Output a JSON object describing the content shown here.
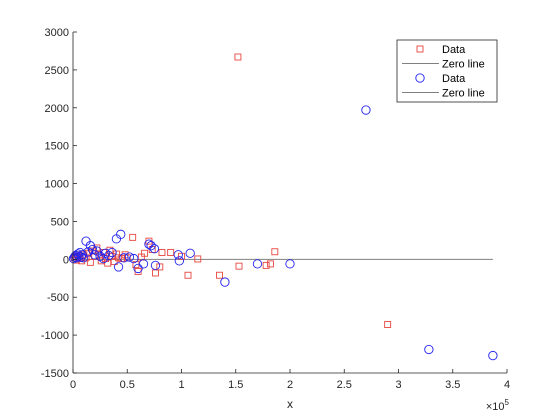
{
  "chart_data": {
    "type": "scatter",
    "xlabel": "x",
    "ylabel": "",
    "x_exponent_base": "×10",
    "x_exponent_power": "5",
    "xlim": [
      0,
      400000
    ],
    "ylim": [
      -1500,
      3000
    ],
    "x_ticks": [
      0,
      50000,
      100000,
      150000,
      200000,
      250000,
      300000,
      350000,
      400000
    ],
    "x_tick_labels": [
      "0",
      "0.5",
      "1",
      "1.5",
      "2",
      "2.5",
      "3",
      "3.5",
      "4"
    ],
    "y_ticks": [
      -1500,
      -1000,
      -500,
      0,
      500,
      1000,
      1500,
      2000,
      2500,
      3000
    ],
    "y_tick_labels": [
      "-1500",
      "-1000",
      "-500",
      "0",
      "500",
      "1000",
      "1500",
      "2000",
      "2500",
      "3000"
    ],
    "grid": false,
    "legend_position": "top-right",
    "legend": [
      {
        "label": "Data",
        "kind": "square",
        "color": "#e8463f"
      },
      {
        "label": "Zero line",
        "kind": "line",
        "color": "#808080"
      },
      {
        "label": "Data",
        "kind": "circle",
        "color": "#2222ee"
      },
      {
        "label": "Zero line",
        "kind": "line",
        "color": "#808080"
      }
    ],
    "series": [
      {
        "marker": "square",
        "color": "#e8463f",
        "points": [
          [
            1000,
            20
          ],
          [
            2000,
            40
          ],
          [
            3000,
            -10
          ],
          [
            4000,
            60
          ],
          [
            5000,
            30
          ],
          [
            6000,
            10
          ],
          [
            8000,
            -20
          ],
          [
            10000,
            60
          ],
          [
            12000,
            20
          ],
          [
            14000,
            80
          ],
          [
            16000,
            -40
          ],
          [
            18000,
            110
          ],
          [
            20000,
            40
          ],
          [
            22000,
            150
          ],
          [
            24000,
            60
          ],
          [
            26000,
            -20
          ],
          [
            28000,
            90
          ],
          [
            30000,
            10
          ],
          [
            32000,
            -50
          ],
          [
            34000,
            120
          ],
          [
            36000,
            40
          ],
          [
            38000,
            -30
          ],
          [
            40000,
            70
          ],
          [
            42000,
            20
          ],
          [
            45000,
            10
          ],
          [
            48000,
            60
          ],
          [
            50000,
            20
          ],
          [
            55000,
            290
          ],
          [
            58000,
            -70
          ],
          [
            60000,
            -160
          ],
          [
            63000,
            30
          ],
          [
            66000,
            80
          ],
          [
            70000,
            240
          ],
          [
            73000,
            130
          ],
          [
            76000,
            -180
          ],
          [
            80000,
            -100
          ],
          [
            82000,
            90
          ],
          [
            90000,
            90
          ],
          [
            100000,
            40
          ],
          [
            106000,
            -210
          ],
          [
            115000,
            5
          ],
          [
            135000,
            -210
          ],
          [
            152000,
            2670
          ],
          [
            153000,
            -90
          ],
          [
            178000,
            -80
          ],
          [
            182000,
            -60
          ],
          [
            186000,
            100
          ],
          [
            290000,
            -860
          ]
        ]
      },
      {
        "marker": "circle",
        "color": "#2222ee",
        "points": [
          [
            500,
            10
          ],
          [
            1500,
            30
          ],
          [
            2500,
            50
          ],
          [
            3500,
            20
          ],
          [
            4500,
            70
          ],
          [
            5500,
            40
          ],
          [
            6500,
            90
          ],
          [
            7500,
            30
          ],
          [
            8500,
            60
          ],
          [
            9500,
            20
          ],
          [
            12000,
            240
          ],
          [
            14000,
            100
          ],
          [
            16000,
            180
          ],
          [
            18000,
            130
          ],
          [
            20000,
            60
          ],
          [
            22000,
            110
          ],
          [
            25000,
            40
          ],
          [
            28000,
            10
          ],
          [
            30000,
            80
          ],
          [
            33000,
            50
          ],
          [
            36000,
            90
          ],
          [
            40000,
            270
          ],
          [
            42000,
            -100
          ],
          [
            44000,
            330
          ],
          [
            47000,
            20
          ],
          [
            52000,
            30
          ],
          [
            56000,
            10
          ],
          [
            60000,
            -120
          ],
          [
            65000,
            -60
          ],
          [
            70000,
            200
          ],
          [
            72000,
            180
          ],
          [
            75000,
            140
          ],
          [
            76000,
            -80
          ],
          [
            97000,
            60
          ],
          [
            98000,
            -20
          ],
          [
            108000,
            80
          ],
          [
            140000,
            -300
          ],
          [
            170000,
            -60
          ],
          [
            200000,
            -60
          ],
          [
            270000,
            1970
          ],
          [
            328000,
            -1190
          ],
          [
            387000,
            -1270
          ]
        ]
      }
    ],
    "reference_lines": [
      {
        "type": "horizontal",
        "y": 0,
        "color": "#808080",
        "x_range": [
          0,
          387000
        ]
      }
    ]
  }
}
